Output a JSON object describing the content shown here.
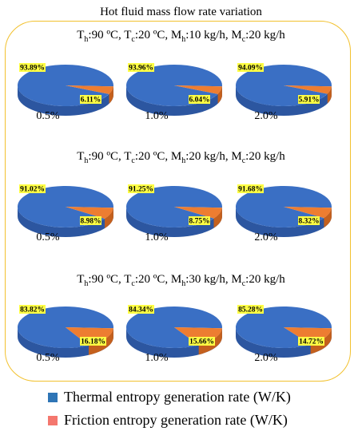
{
  "title": "Hot fluid mass flow rate variation",
  "colors": {
    "thermal": "#3a6fc4",
    "thermal_side": "#2c56a0",
    "friction": "#ed7d31",
    "friction_side": "#c4601d",
    "label_bg": "#ffff44",
    "border": "#f2c12e"
  },
  "groups": [
    {
      "cond": {
        "th_sub": "h",
        "th": ":90 ºC, T",
        "tc_sub": "c",
        "tc": ":20 ºC, M",
        "mh_sub": "h",
        "mh": ":10 kg/h, M",
        "mc_sub": "c",
        "mc": ":20 kg/h"
      }
    },
    {
      "cond": {
        "th_sub": "h",
        "th": ":90 ºC, T",
        "tc_sub": "c",
        "tc": ":20 ºC, M",
        "mh_sub": "h",
        "mh": ":20 kg/h, M",
        "mc_sub": "c",
        "mc": ":20 kg/h"
      }
    },
    {
      "cond": {
        "th_sub": "h",
        "th": ":90 ºC, T",
        "tc_sub": "c",
        "tc": ":20 ºC, M",
        "mh_sub": "h",
        "mh": ":30 kg/h, M",
        "mc_sub": "c",
        "mc": ":20 kg/h"
      }
    }
  ],
  "legend": [
    {
      "label": "Thermal entropy generation rate (W/K)",
      "color": "#2e75b6"
    },
    {
      "label": "Friction entropy generation rate (W/K)",
      "color": "#f4776e"
    }
  ],
  "chart_data": {
    "type": "pie",
    "series": [
      {
        "name": "Thermal entropy generation rate (W/K)"
      },
      {
        "name": "Friction entropy generation rate (W/K)"
      }
    ],
    "pies": [
      {
        "concentration": "0.5%",
        "thermal": 93.89,
        "friction": 6.11,
        "thermal_label": "93.89%",
        "friction_label": "6.11%"
      },
      {
        "concentration": "1.0%",
        "thermal": 93.96,
        "friction": 6.04,
        "thermal_label": "93.96%",
        "friction_label": "6.04%"
      },
      {
        "concentration": "2.0%",
        "thermal": 94.09,
        "friction": 5.91,
        "thermal_label": "94.09%",
        "friction_label": "5.91%"
      },
      {
        "concentration": "0.5%",
        "thermal": 91.02,
        "friction": 8.98,
        "thermal_label": "91.02%",
        "friction_label": "8.98%"
      },
      {
        "concentration": "1.0%",
        "thermal": 91.25,
        "friction": 8.75,
        "thermal_label": "91.25%",
        "friction_label": "8.75%"
      },
      {
        "concentration": "2.0%",
        "thermal": 91.68,
        "friction": 8.32,
        "thermal_label": "91.68%",
        "friction_label": "8.32%"
      },
      {
        "concentration": "0.5%",
        "thermal": 83.82,
        "friction": 16.18,
        "thermal_label": "83.82%",
        "friction_label": "16.18%"
      },
      {
        "concentration": "1.0%",
        "thermal": 84.34,
        "friction": 15.66,
        "thermal_label": "84.34%",
        "friction_label": "15.66%"
      },
      {
        "concentration": "2.0%",
        "thermal": 85.28,
        "friction": 14.72,
        "thermal_label": "85.28%",
        "friction_label": "14.72%"
      }
    ]
  }
}
